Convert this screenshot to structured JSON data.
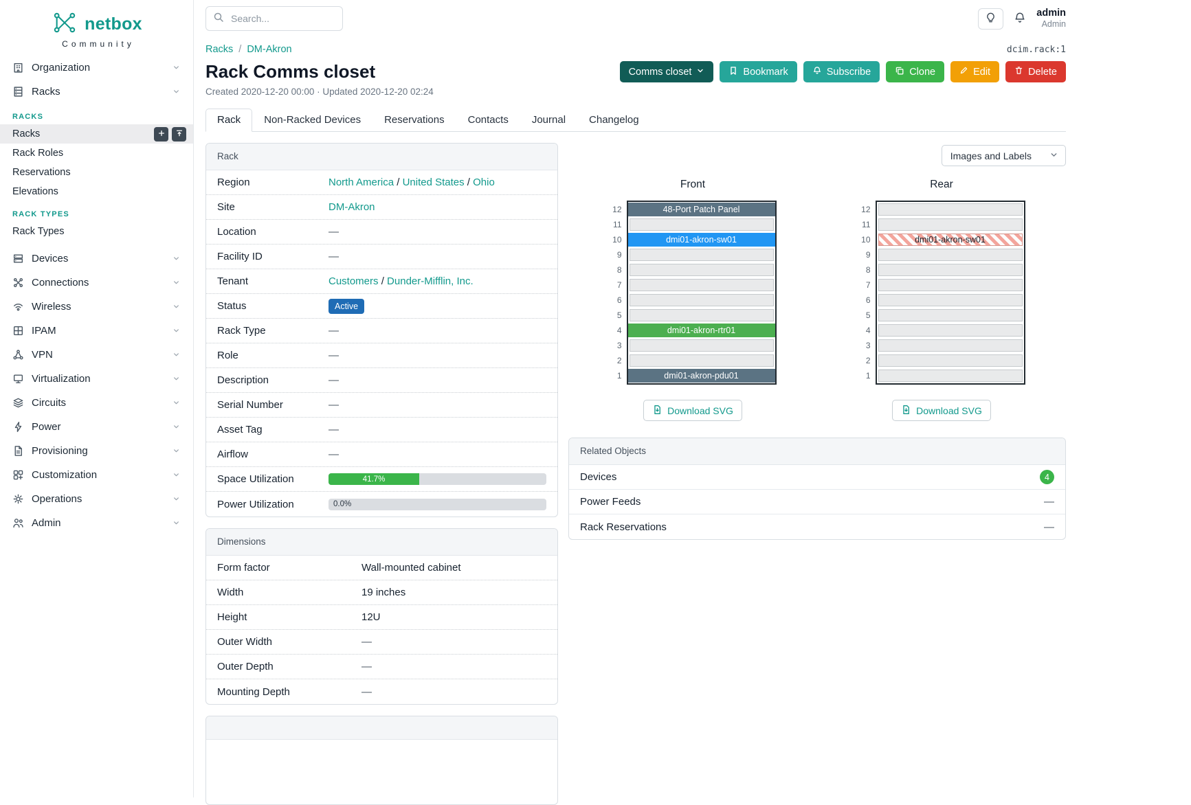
{
  "brand": {
    "name": "netbox",
    "subtitle": "Community"
  },
  "topbar": {
    "search_placeholder": "Search...",
    "user_name": "admin",
    "user_role": "Admin"
  },
  "breadcrumb": {
    "parent": "Racks",
    "separator": "/",
    "current": "DM-Akron",
    "object_ref": "dcim.rack:1"
  },
  "header": {
    "title": "Rack Comms closet",
    "meta": "Created 2020-12-20 00:00 · Updated 2020-12-20 02:24",
    "buttons": {
      "quick": "Comms closet",
      "bookmark": "Bookmark",
      "subscribe": "Subscribe",
      "clone": "Clone",
      "edit": "Edit",
      "delete": "Delete"
    }
  },
  "tabs": [
    {
      "label": "Rack",
      "active": true
    },
    {
      "label": "Non-Racked Devices",
      "active": false
    },
    {
      "label": "Reservations",
      "active": false
    },
    {
      "label": "Contacts",
      "active": false
    },
    {
      "label": "Journal",
      "active": false
    },
    {
      "label": "Changelog",
      "active": false
    }
  ],
  "sidebar": {
    "groups_top": [
      {
        "label": "Organization",
        "icon": "organization"
      },
      {
        "label": "Racks",
        "icon": "racks",
        "expanded": true
      }
    ],
    "rack_sections": [
      {
        "heading": "RACKS",
        "links": [
          {
            "label": "Racks",
            "active": true,
            "actions": [
              "add",
              "import"
            ]
          },
          {
            "label": "Rack Roles"
          },
          {
            "label": "Reservations"
          },
          {
            "label": "Elevations"
          }
        ]
      },
      {
        "heading": "RACK TYPES",
        "links": [
          {
            "label": "Rack Types"
          }
        ]
      }
    ],
    "groups_bottom": [
      {
        "label": "Devices",
        "icon": "devices"
      },
      {
        "label": "Connections",
        "icon": "connections"
      },
      {
        "label": "Wireless",
        "icon": "wireless"
      },
      {
        "label": "IPAM",
        "icon": "ipam"
      },
      {
        "label": "VPN",
        "icon": "vpn"
      },
      {
        "label": "Virtualization",
        "icon": "virtualization"
      },
      {
        "label": "Circuits",
        "icon": "circuits"
      },
      {
        "label": "Power",
        "icon": "power"
      },
      {
        "label": "Provisioning",
        "icon": "provisioning"
      },
      {
        "label": "Customization",
        "icon": "customization"
      },
      {
        "label": "Operations",
        "icon": "operations"
      },
      {
        "label": "Admin",
        "icon": "admin"
      }
    ]
  },
  "link_separator": " / ",
  "rack_panel": {
    "title": "Rack",
    "rows": [
      {
        "label": "Region",
        "type": "links",
        "links": [
          "North America",
          "United States",
          "Ohio"
        ]
      },
      {
        "label": "Site",
        "type": "links",
        "links": [
          "DM-Akron"
        ]
      },
      {
        "label": "Location",
        "type": "empty",
        "value": "—"
      },
      {
        "label": "Facility ID",
        "type": "empty",
        "value": "—"
      },
      {
        "label": "Tenant",
        "type": "links",
        "links": [
          "Customers",
          "Dunder-Mifflin, Inc."
        ]
      },
      {
        "label": "Status",
        "type": "badge",
        "value": "Active",
        "color": "#1f6cb5"
      },
      {
        "label": "Rack Type",
        "type": "empty",
        "value": "—"
      },
      {
        "label": "Role",
        "type": "empty",
        "value": "—"
      },
      {
        "label": "Description",
        "type": "empty",
        "value": "—"
      },
      {
        "label": "Serial Number",
        "type": "empty",
        "value": "—"
      },
      {
        "label": "Asset Tag",
        "type": "empty",
        "value": "—"
      },
      {
        "label": "Airflow",
        "type": "empty",
        "value": "—"
      },
      {
        "label": "Space Utilization",
        "type": "progress",
        "percent": 41.7,
        "text": "41.7%"
      },
      {
        "label": "Power Utilization",
        "type": "progress",
        "percent": 0,
        "text": "0.0%"
      }
    ]
  },
  "dimensions_panel": {
    "title": "Dimensions",
    "rows": [
      {
        "label": "Form factor",
        "value": "Wall-mounted cabinet"
      },
      {
        "label": "Width",
        "value": "19 inches"
      },
      {
        "label": "Height",
        "value": "12U"
      },
      {
        "label": "Outer Width",
        "value": "—"
      },
      {
        "label": "Outer Depth",
        "value": "—"
      },
      {
        "label": "Mounting Depth",
        "value": "—"
      }
    ]
  },
  "elevations": {
    "view_selector": "Images and Labels",
    "download_label": "Download SVG",
    "unit_count": 12,
    "front": {
      "title": "Front",
      "devices": [
        {
          "u": 12,
          "label": "48-Port Patch Panel",
          "style": "slate"
        },
        {
          "u": 10,
          "label": "dmi01-akron-sw01",
          "style": "blue"
        },
        {
          "u": 4,
          "label": "dmi01-akron-rtr01",
          "style": "green"
        },
        {
          "u": 1,
          "label": "dmi01-akron-pdu01",
          "style": "slate"
        }
      ]
    },
    "rear": {
      "title": "Rear",
      "devices": [
        {
          "u": 10,
          "label": "dmi01-akron-sw01",
          "style": "striped"
        }
      ]
    }
  },
  "related_objects": {
    "title": "Related Objects",
    "rows": [
      {
        "label": "Devices",
        "count": "4"
      },
      {
        "label": "Power Feeds",
        "value": "—"
      },
      {
        "label": "Rack Reservations",
        "value": "—"
      }
    ]
  },
  "icons": {
    "search": "magnifier",
    "theme_toggle": "lightbulb",
    "notifications": "bell",
    "bookmark": "bookmark",
    "subscribe": "bell",
    "clone": "copy",
    "edit": "pencil",
    "delete": "trash",
    "download": "file-download",
    "quick_nav_caret": "chevron-down"
  },
  "colors": {
    "brand_teal": "#12998c",
    "link_teal": "#12998c",
    "button_teal": "#26a69a",
    "button_dark_teal": "#115c56",
    "button_green": "#3bb54a",
    "button_amber": "#f2a007",
    "button_red": "#db382e",
    "status_active_blue": "#1f6cb5",
    "progress_green": "#3bb54a",
    "device_slate": "#5b7383",
    "device_blue": "#2196f3",
    "device_green": "#4caf50",
    "count_badge_green": "#3bb54a"
  }
}
